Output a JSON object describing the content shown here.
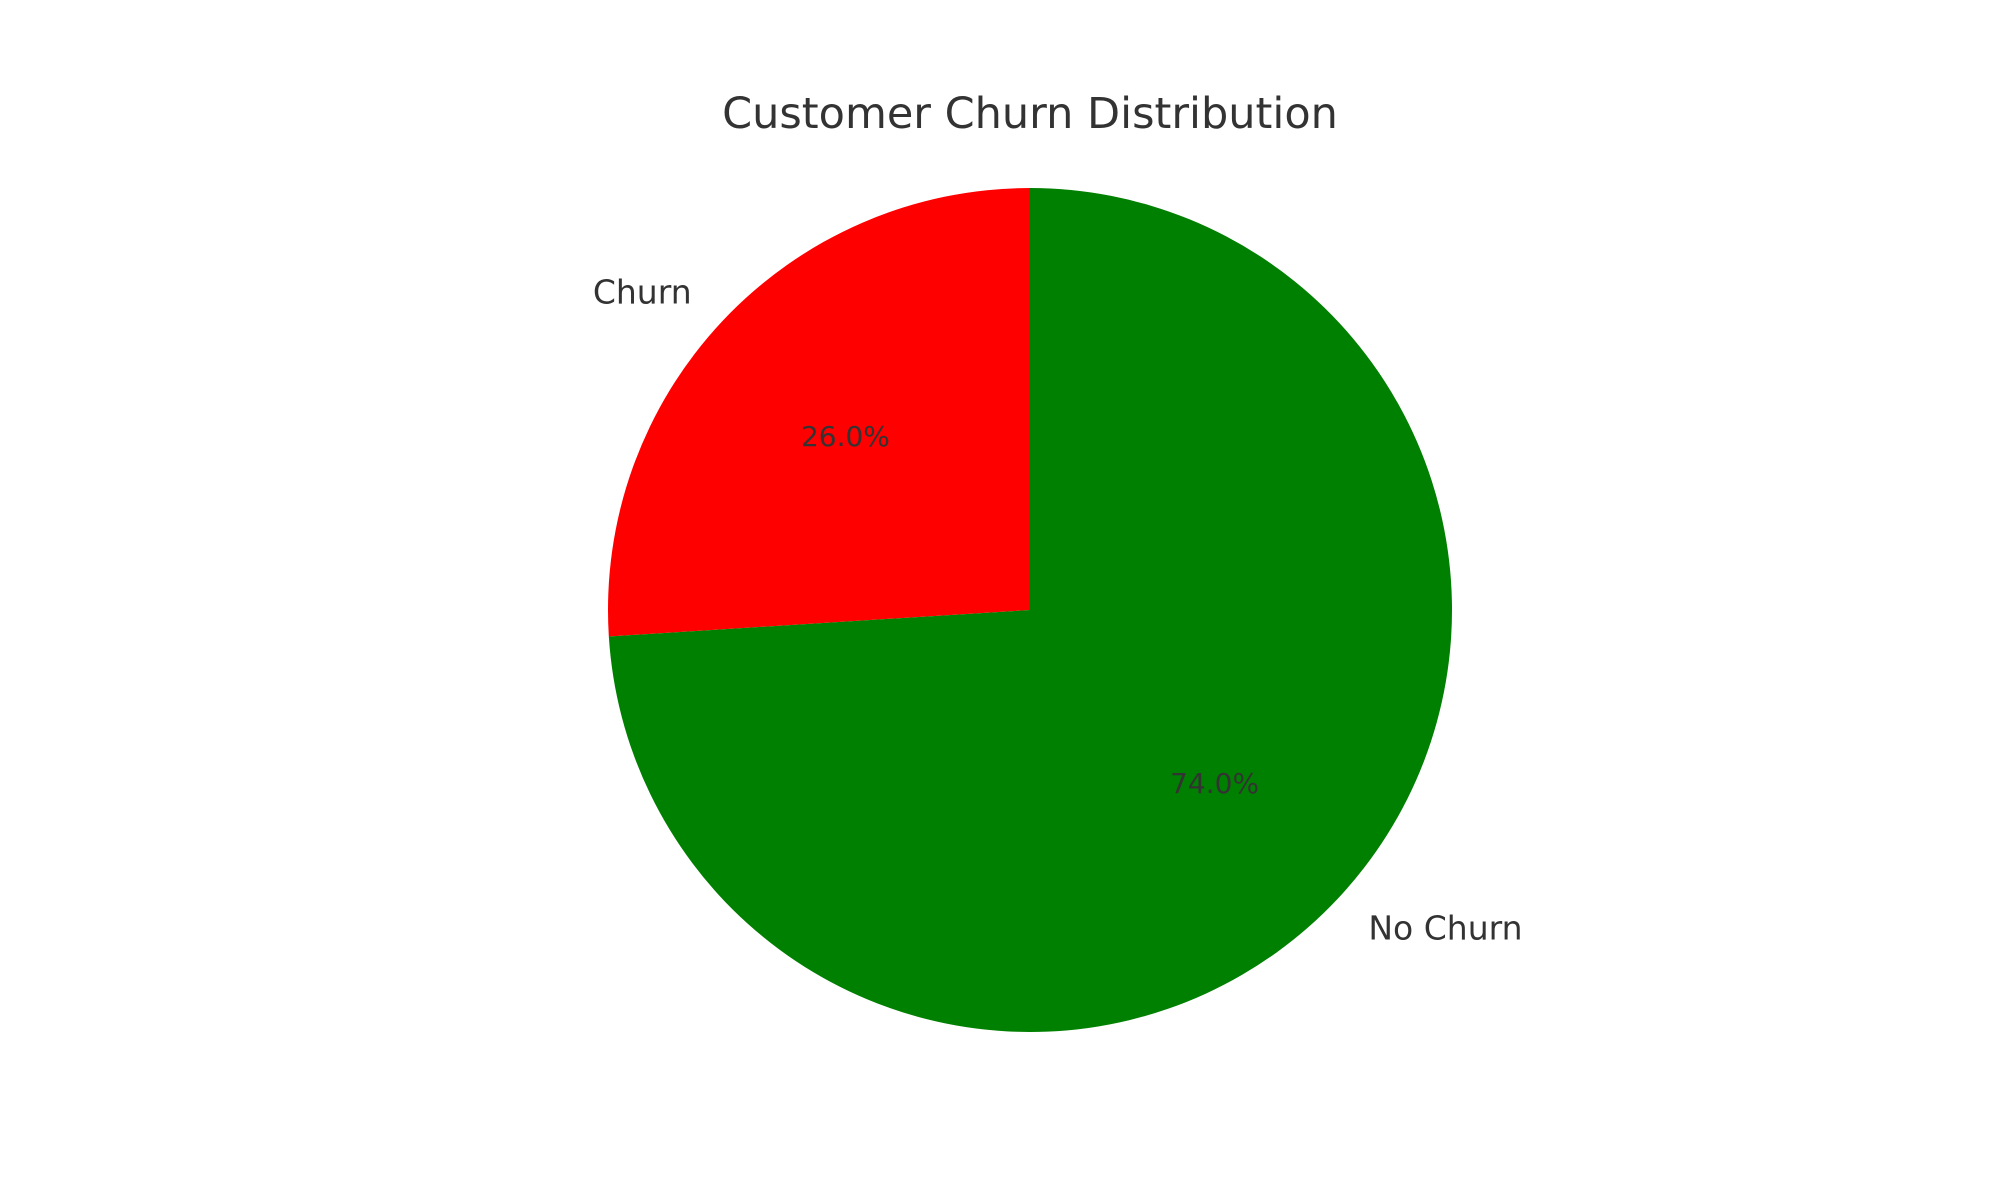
{
  "chart_data": {
    "type": "pie",
    "title": "Customer Churn Distribution",
    "start_angle_deg": 90,
    "direction": "counterclockwise",
    "slices": [
      {
        "label": "Churn",
        "percent_label": "26.0%",
        "value": 26.0,
        "color": "#ff0000"
      },
      {
        "label": "No Churn",
        "percent_label": "74.0%",
        "value": 74.0,
        "color": "#008000"
      }
    ],
    "legend": "none"
  }
}
